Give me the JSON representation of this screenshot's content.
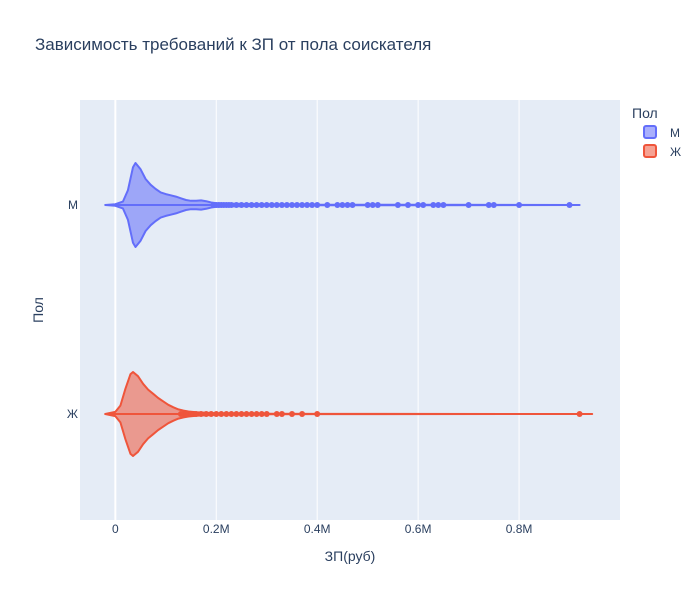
{
  "chart_data": {
    "type": "violin",
    "title": "Зависимость требований к ЗП от пола соискателя",
    "xlabel": "ЗП(руб)",
    "ylabel": "Пол",
    "xlim": [
      -70000,
      1000000
    ],
    "x_ticks": [
      {
        "value": 0,
        "label": "0"
      },
      {
        "value": 200000,
        "label": "0.2M"
      },
      {
        "value": 400000,
        "label": "0.4M"
      },
      {
        "value": 600000,
        "label": "0.6M"
      },
      {
        "value": 800000,
        "label": "0.8M"
      }
    ],
    "grid": true,
    "legend": {
      "title": "Пол",
      "position": "top-right"
    },
    "series": [
      {
        "name": "М",
        "color": "#636efa",
        "fill": "rgba(99,110,250,0.55)",
        "range": [
          -20000,
          920000
        ],
        "density": [
          [
            -20000,
            0
          ],
          [
            0,
            0.02
          ],
          [
            15000,
            0.08
          ],
          [
            25000,
            0.35
          ],
          [
            35000,
            0.9
          ],
          [
            40000,
            1.0
          ],
          [
            50000,
            0.85
          ],
          [
            60000,
            0.62
          ],
          [
            70000,
            0.48
          ],
          [
            80000,
            0.38
          ],
          [
            90000,
            0.3
          ],
          [
            100000,
            0.26
          ],
          [
            110000,
            0.23
          ],
          [
            120000,
            0.2
          ],
          [
            130000,
            0.16
          ],
          [
            140000,
            0.12
          ],
          [
            150000,
            0.1
          ],
          [
            160000,
            0.1
          ],
          [
            170000,
            0.11
          ],
          [
            180000,
            0.09
          ],
          [
            190000,
            0.06
          ],
          [
            200000,
            0.04
          ],
          [
            250000,
            0.025
          ],
          [
            300000,
            0.015
          ],
          [
            400000,
            0.008
          ],
          [
            600000,
            0.004
          ],
          [
            920000,
            0.0
          ]
        ],
        "outliers": [
          195000,
          200000,
          205000,
          210000,
          215000,
          220000,
          225000,
          230000,
          240000,
          250000,
          260000,
          270000,
          280000,
          290000,
          300000,
          310000,
          320000,
          330000,
          340000,
          350000,
          360000,
          370000,
          380000,
          390000,
          400000,
          420000,
          440000,
          450000,
          460000,
          470000,
          500000,
          510000,
          520000,
          560000,
          580000,
          600000,
          610000,
          630000,
          640000,
          650000,
          700000,
          740000,
          750000,
          800000,
          900000
        ]
      },
      {
        "name": "Ж",
        "color": "#ef553b",
        "fill": "rgba(239,85,59,0.55)",
        "range": [
          -20000,
          945000
        ],
        "density": [
          [
            -20000,
            0
          ],
          [
            0,
            0.05
          ],
          [
            10000,
            0.2
          ],
          [
            20000,
            0.6
          ],
          [
            30000,
            0.95
          ],
          [
            35000,
            1.0
          ],
          [
            45000,
            0.9
          ],
          [
            55000,
            0.72
          ],
          [
            65000,
            0.58
          ],
          [
            75000,
            0.48
          ],
          [
            85000,
            0.38
          ],
          [
            95000,
            0.3
          ],
          [
            105000,
            0.22
          ],
          [
            115000,
            0.16
          ],
          [
            125000,
            0.11
          ],
          [
            135000,
            0.08
          ],
          [
            145000,
            0.06
          ],
          [
            160000,
            0.04
          ],
          [
            180000,
            0.03
          ],
          [
            200000,
            0.02
          ],
          [
            250000,
            0.012
          ],
          [
            300000,
            0.006
          ],
          [
            400000,
            0.003
          ],
          [
            945000,
            0.0
          ]
        ],
        "outliers": [
          130000,
          135000,
          140000,
          145000,
          150000,
          155000,
          160000,
          170000,
          180000,
          190000,
          200000,
          210000,
          220000,
          230000,
          240000,
          250000,
          260000,
          270000,
          280000,
          290000,
          300000,
          320000,
          330000,
          350000,
          370000,
          400000,
          920000
        ]
      }
    ]
  }
}
